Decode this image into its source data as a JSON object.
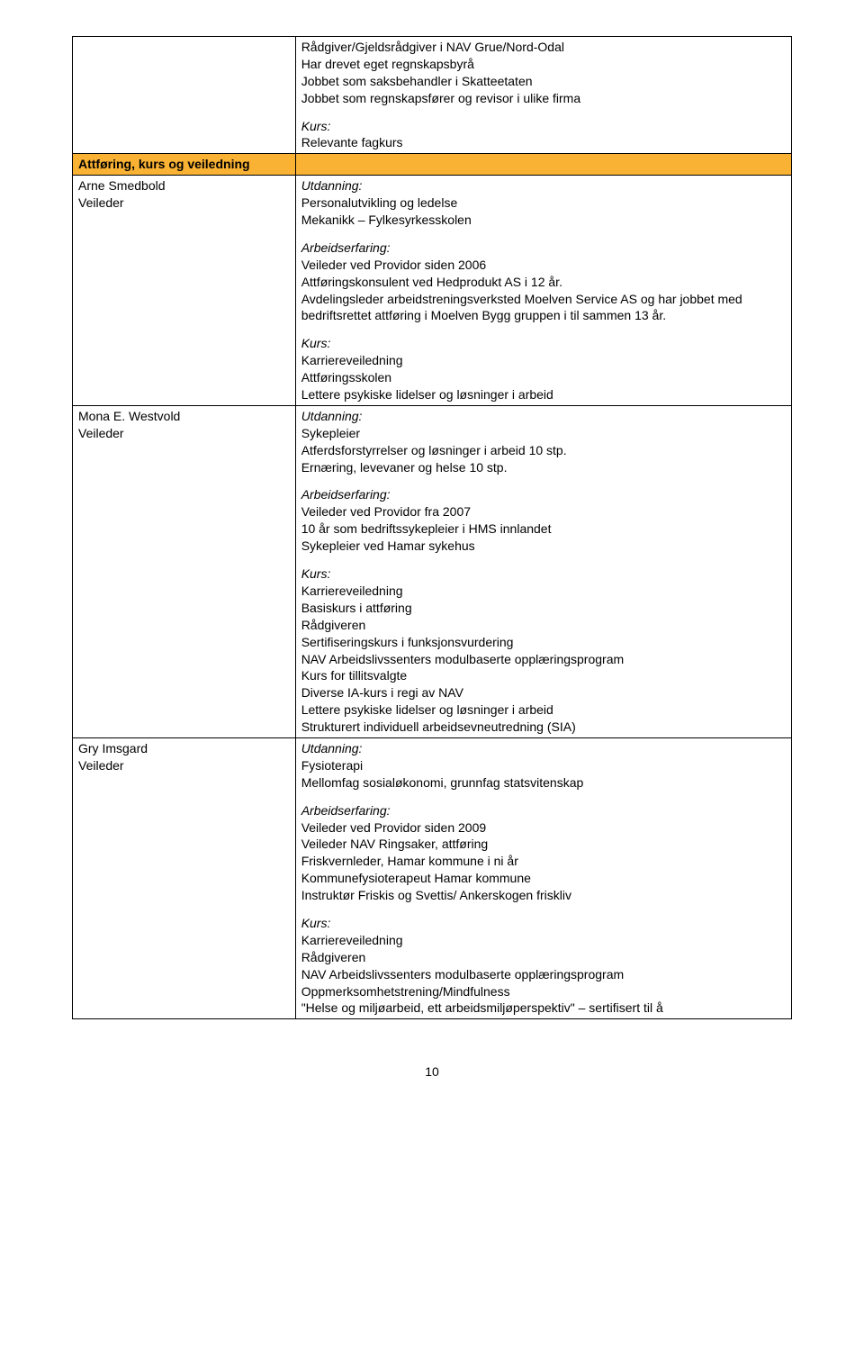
{
  "intro": {
    "lines": [
      "Rådgiver/Gjeldsrådgiver i NAV Grue/Nord-Odal",
      "Har drevet eget regnskapsbyrå",
      "Jobbet som saksbehandler i Skatteetaten",
      "Jobbet som regnskapsfører og revisor i ulike firma"
    ],
    "kurs_label": "Kurs:",
    "kurs_line": "Relevante fagkurs"
  },
  "section_header": "Attføring, kurs og veiledning",
  "people": [
    {
      "name": "Arne Smedbold",
      "role": "Veileder",
      "blocks": [
        {
          "heading": "Utdanning:",
          "heading_italic": true,
          "lines": [
            "Personalutvikling og ledelse",
            "Mekanikk – Fylkesyrkesskolen"
          ]
        },
        {
          "heading": "Arbeidserfaring:",
          "heading_italic": true,
          "lines": [
            "Veileder ved Providor siden 2006",
            "Attføringskonsulent ved Hedprodukt AS i 12 år.",
            "Avdelingsleder arbeidstreningsverksted Moelven Service AS og har jobbet med bedriftsrettet attføring i Moelven Bygg gruppen i til sammen 13 år."
          ]
        },
        {
          "heading": "Kurs:",
          "heading_italic": true,
          "lines": [
            "Karriereveiledning",
            "Attføringsskolen",
            "Lettere psykiske lidelser og løsninger i arbeid"
          ]
        }
      ]
    },
    {
      "name": "Mona E. Westvold",
      "role": "Veileder",
      "blocks": [
        {
          "heading": "Utdanning:",
          "heading_italic": true,
          "lines": [
            "Sykepleier",
            "Atferdsforstyrrelser og løsninger i arbeid 10 stp.",
            "Ernæring, levevaner og helse 10 stp."
          ]
        },
        {
          "heading": "Arbeidserfaring:",
          "heading_italic": true,
          "lines": [
            "Veileder ved Providor fra 2007",
            "10 år som bedriftssykepleier i HMS innlandet",
            "Sykepleier ved Hamar sykehus"
          ]
        },
        {
          "heading": "Kurs:",
          "heading_italic": true,
          "lines": [
            "Karriereveiledning",
            "Basiskurs i attføring",
            "Rådgiveren",
            "Sertifiseringskurs i funksjonsvurdering",
            "NAV Arbeidslivssenters modulbaserte opplæringsprogram",
            "Kurs for tillitsvalgte",
            "Diverse IA-kurs i regi av NAV",
            "Lettere psykiske lidelser og løsninger i arbeid",
            "Strukturert individuell arbeidsevneutredning (SIA)"
          ]
        }
      ]
    },
    {
      "name": "Gry Imsgard",
      "role": "Veileder",
      "blocks": [
        {
          "heading": "Utdanning:",
          "heading_italic": true,
          "lines": [
            "Fysioterapi",
            "Mellomfag sosialøkonomi, grunnfag statsvitenskap"
          ]
        },
        {
          "heading": "Arbeidserfaring:",
          "heading_italic": true,
          "lines": [
            "Veileder ved Providor siden 2009",
            "Veileder NAV Ringsaker, attføring",
            "Friskvernleder, Hamar kommune i ni år",
            "Kommunefysioterapeut Hamar kommune",
            "Instruktør Friskis og Svettis/ Ankerskogen friskliv"
          ]
        },
        {
          "heading": "Kurs:",
          "heading_italic": true,
          "lines": [
            "Karriereveiledning",
            "Rådgiveren",
            "NAV Arbeidslivssenters modulbaserte opplæringsprogram",
            "Oppmerksomhetstrening/Mindfulness",
            "\"Helse og miljøarbeid, ett arbeidsmiljøperspektiv\" – sertifisert til å"
          ]
        }
      ]
    }
  ],
  "page_number": "10"
}
